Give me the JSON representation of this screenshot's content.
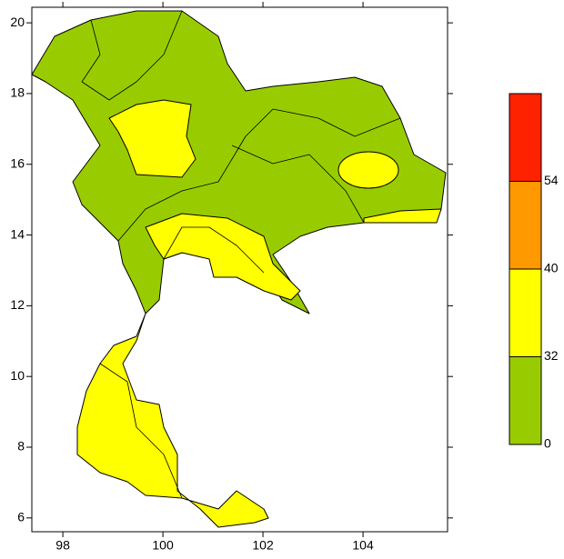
{
  "map": {
    "xlim": [
      97.38,
      105.69
    ],
    "ylim": [
      5.61,
      20.44
    ],
    "xticks": [
      98,
      100,
      102,
      104
    ],
    "yticks": [
      6,
      8,
      10,
      12,
      14,
      16,
      18,
      20
    ]
  },
  "colorbar": {
    "ticks": [
      0,
      32,
      40,
      54
    ],
    "colors": [
      "#99cc00",
      "#ffff00",
      "#ff9900",
      "#ff2200"
    ]
  }
}
